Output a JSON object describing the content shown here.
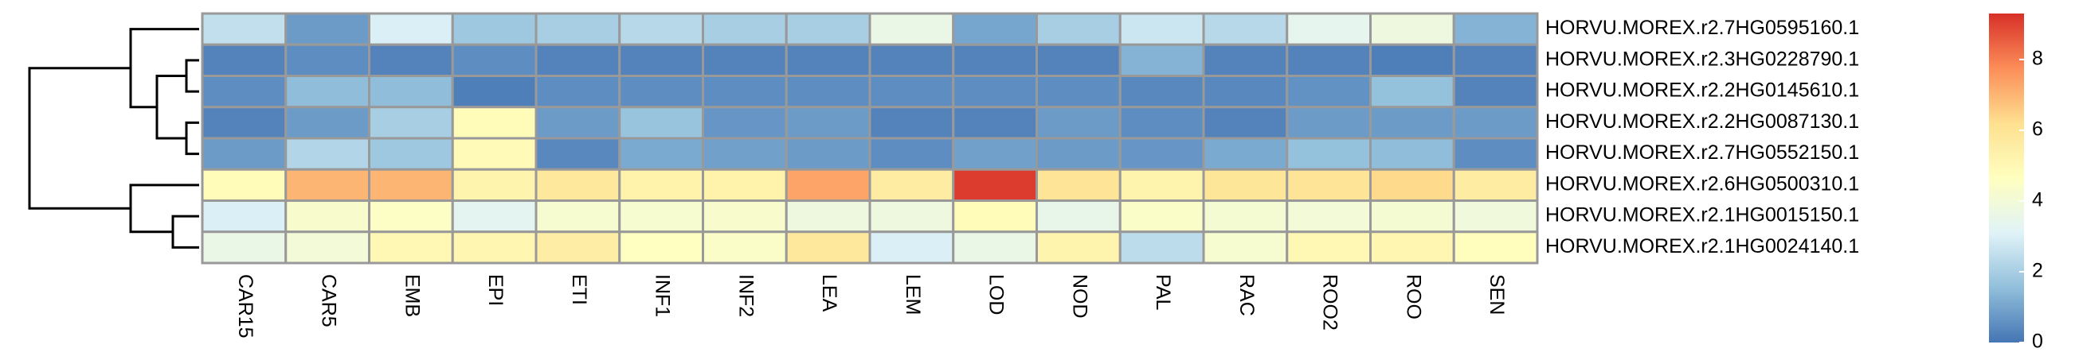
{
  "chart_data": {
    "type": "heatmap",
    "rows": [
      "HORVU.MOREX.r2.7HG0595160.1",
      "HORVU.MOREX.r2.3HG0228790.1",
      "HORVU.MOREX.r2.2HG0145610.1",
      "HORVU.MOREX.r2.2HG0087130.1",
      "HORVU.MOREX.r2.7HG0552150.1",
      "HORVU.MOREX.r2.6HG0500310.1",
      "HORVU.MOREX.r2.1HG0015150.1",
      "HORVU.MOREX.r2.1HG0024140.1"
    ],
    "columns": [
      "CAR15",
      "CAR5",
      "EMB",
      "EPI",
      "ETI",
      "INF1",
      "INF2",
      "LEA",
      "LEM",
      "LOD",
      "NOD",
      "PAL",
      "RAC",
      "ROO2",
      "ROO",
      "SEN"
    ],
    "values": [
      [
        2.5,
        0.8,
        3.0,
        1.8,
        2.0,
        2.3,
        2.0,
        2.0,
        3.6,
        1.0,
        2.0,
        2.7,
        2.3,
        3.4,
        3.8,
        1.3
      ],
      [
        0.3,
        0.5,
        0.3,
        0.5,
        0.3,
        0.3,
        0.3,
        0.3,
        0.3,
        0.3,
        0.3,
        1.3,
        0.3,
        0.3,
        0.2,
        0.3
      ],
      [
        0.5,
        1.5,
        1.5,
        0.2,
        0.5,
        0.5,
        0.5,
        0.5,
        0.5,
        0.5,
        0.5,
        0.4,
        0.4,
        0.6,
        1.6,
        0.3
      ],
      [
        0.3,
        0.8,
        2.0,
        4.8,
        0.8,
        1.7,
        0.7,
        0.8,
        0.3,
        0.3,
        0.8,
        0.5,
        0.3,
        0.8,
        0.8,
        0.8
      ],
      [
        0.8,
        2.2,
        1.8,
        4.9,
        0.4,
        1.1,
        0.9,
        0.8,
        0.5,
        0.9,
        0.8,
        0.7,
        1.1,
        1.6,
        1.5,
        0.5
      ],
      [
        4.8,
        7.0,
        7.0,
        5.2,
        5.8,
        5.3,
        5.3,
        7.3,
        5.6,
        9.1,
        6.0,
        5.2,
        5.9,
        6.0,
        6.3,
        5.6
      ],
      [
        3.0,
        4.3,
        4.5,
        3.3,
        4.2,
        4.2,
        4.3,
        3.8,
        3.8,
        4.8,
        3.5,
        4.4,
        4.1,
        4.0,
        4.1,
        3.9
      ],
      [
        3.6,
        4.0,
        5.0,
        5.1,
        5.5,
        4.6,
        4.4,
        5.8,
        3.0,
        3.6,
        5.2,
        2.4,
        4.2,
        5.0,
        5.1,
        4.7
      ]
    ],
    "colors": [
      "#4575B4",
      "#91BFDB",
      "#E0F3F8",
      "#FFFFBF",
      "#FEE090",
      "#FC8D59",
      "#D73027"
    ],
    "zlim": [
      0,
      9.3
    ],
    "zticks": [
      0,
      2,
      4,
      6,
      8
    ]
  }
}
